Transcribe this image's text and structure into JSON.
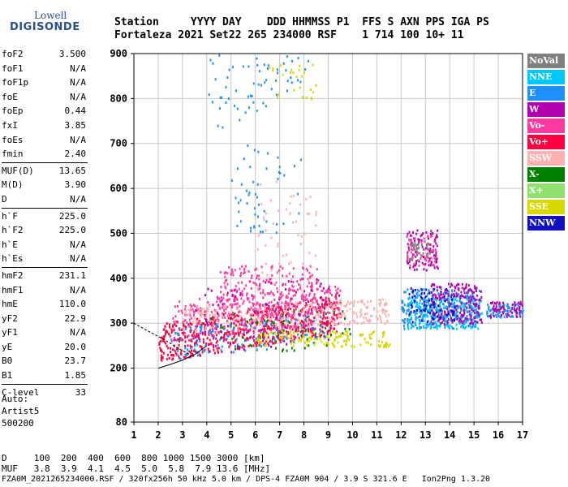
{
  "logo": {
    "line1": "Lowell",
    "line2": "DIGISONDE"
  },
  "header": {
    "line1": "Station     YYYY DAY    DDD HHMMSS P1  FFS S AXN PPS IGA PS",
    "line2": "Fortaleza 2021 Set22 265 234000 RSF    1 714 100 10+ 11"
  },
  "params": [
    [
      [
        "foF2",
        "3.500"
      ],
      [
        "foF1",
        "N/A"
      ],
      [
        "foF1p",
        "N/A"
      ],
      [
        "foE",
        "N/A"
      ],
      [
        "foEp",
        "0.44"
      ],
      [
        "fxI",
        "3.85"
      ],
      [
        "foEs",
        "N/A"
      ],
      [
        "fmin",
        "2.40"
      ]
    ],
    [
      [
        "MUF(D)",
        "13.65"
      ],
      [
        "M(D)",
        "3.90"
      ],
      [
        "D",
        "N/A"
      ]
    ],
    [
      [
        "h`F",
        "225.0"
      ],
      [
        "h`F2",
        "225.0"
      ],
      [
        "h`E",
        "N/A"
      ],
      [
        "h`Es",
        "N/A"
      ]
    ],
    [
      [
        "hmF2",
        "231.1"
      ],
      [
        "hmF1",
        "N/A"
      ],
      [
        "hmE",
        "110.0"
      ],
      [
        "yF2",
        "22.9"
      ],
      [
        "yF1",
        "N/A"
      ],
      [
        "yE",
        "20.0"
      ],
      [
        "B0",
        "23.7"
      ],
      [
        "B1",
        "1.85"
      ]
    ],
    [
      [
        "C-level",
        "33"
      ]
    ]
  ],
  "auto": {
    "line1": "Auto:",
    "line2": "Artist5",
    "line3": "500200"
  },
  "legend": [
    {
      "label": "NoVal",
      "color": "#808080"
    },
    {
      "label": "NNE",
      "color": "#00c8ff"
    },
    {
      "label": "E",
      "color": "#1e90ff"
    },
    {
      "label": "W",
      "color": "#b000b0"
    },
    {
      "label": "Vo-",
      "color": "#ff3aa0"
    },
    {
      "label": "Vo+",
      "color": "#ff0040"
    },
    {
      "label": "SSW",
      "color": "#ffb0b0"
    },
    {
      "label": "X-",
      "color": "#008000"
    },
    {
      "label": "X+",
      "color": "#90e070"
    },
    {
      "label": "SSE",
      "color": "#d8d800"
    },
    {
      "label": "NNW",
      "color": "#1010c0"
    }
  ],
  "footer": {
    "line1": "D     100  200  400  600  800 1000 1500 3000 [km]",
    "line2": "MUF   3.8  3.9  4.1  4.5  5.0  5.8  7.9 13.6 [MHz]",
    "line3": "FZA0M_2021265234000.RSF / 320fx256h 50 kHz 5.0 km / DPS-4 FZA0M 904 / 3.9 S 321.6 E   Ion2Png 1.3.20"
  },
  "chart_data": {
    "type": "scatter",
    "xlim": [
      1,
      17
    ],
    "ylim": [
      80,
      900
    ],
    "xticks": [
      1,
      2,
      3,
      4,
      5,
      6,
      7,
      8,
      9,
      10,
      11,
      12,
      13,
      14,
      15,
      16,
      17
    ],
    "yticks": [
      80,
      200,
      300,
      400,
      500,
      600,
      700,
      800,
      900
    ],
    "grid": true,
    "legend_placement": "right",
    "clusters": [
      {
        "name": "Vo+",
        "color": "#ff0040",
        "fmin": 2.0,
        "fmax": 9.5,
        "hmin": 215,
        "hmax": 300,
        "count": 650,
        "slope": 9
      },
      {
        "name": "Vo-",
        "color": "#ff3aa0",
        "fmin": 2.5,
        "fmax": 9.5,
        "hmin": 260,
        "hmax": 350,
        "count": 320,
        "slope": 6
      },
      {
        "name": "SSW",
        "color": "#ffb0b0",
        "fmin": 3.0,
        "fmax": 11.5,
        "hmin": 285,
        "hmax": 340,
        "count": 320,
        "slope": 2
      },
      {
        "name": "SSE",
        "color": "#d8d800",
        "fmin": 6.0,
        "fmax": 11.5,
        "hmin": 250,
        "hmax": 285,
        "count": 150,
        "slope": 0
      },
      {
        "name": "X-",
        "color": "#008000",
        "fmin": 4.0,
        "fmax": 10.0,
        "hmin": 230,
        "hmax": 320,
        "count": 70,
        "slope": 3
      },
      {
        "name": "E",
        "color": "#1e90ff",
        "fmin": 2.5,
        "fmax": 9.0,
        "hmin": 220,
        "hmax": 290,
        "count": 110,
        "slope": 6
      },
      {
        "name": "W",
        "color": "#b000b0",
        "fmin": 3.5,
        "fmax": 9.0,
        "hmin": 230,
        "hmax": 380,
        "count": 120,
        "slope": 5
      },
      {
        "name": "Vo-",
        "color": "#ff3aa0",
        "fmin": 4.5,
        "fmax": 8.6,
        "hmin": 320,
        "hmax": 430,
        "count": 230,
        "slope": 0
      },
      {
        "name": "E",
        "color": "#1e90ff",
        "fmin": 12.0,
        "fmax": 15.2,
        "hmin": 290,
        "hmax": 380,
        "count": 300,
        "slope": 0
      },
      {
        "name": "NNE",
        "color": "#00c8ff",
        "fmin": 12.2,
        "fmax": 15.3,
        "hmin": 290,
        "hmax": 360,
        "count": 220,
        "slope": 0
      },
      {
        "name": "W",
        "color": "#b000b0",
        "fmin": 13.2,
        "fmax": 15.3,
        "hmin": 300,
        "hmax": 390,
        "count": 200,
        "slope": 0
      },
      {
        "name": "NNW",
        "color": "#1010c0",
        "fmin": 12.3,
        "fmax": 14.2,
        "hmin": 305,
        "hmax": 380,
        "count": 70,
        "slope": 0
      },
      {
        "name": "E",
        "color": "#1e90ff",
        "fmin": 15.5,
        "fmax": 17.0,
        "hmin": 315,
        "hmax": 345,
        "count": 80,
        "slope": 0
      },
      {
        "name": "W",
        "color": "#b000b0",
        "fmin": 15.5,
        "fmax": 17.0,
        "hmin": 315,
        "hmax": 350,
        "count": 60,
        "slope": 0
      },
      {
        "name": "W",
        "color": "#b000b0",
        "fmin": 12.2,
        "fmax": 13.5,
        "hmin": 420,
        "hmax": 510,
        "count": 90,
        "slope": 0
      },
      {
        "name": "Vo-",
        "color": "#ff3aa0",
        "fmin": 12.2,
        "fmax": 13.4,
        "hmin": 430,
        "hmax": 500,
        "count": 60,
        "slope": 0
      },
      {
        "name": "NoVal",
        "color": "#808080",
        "fmin": 12.3,
        "fmax": 13.2,
        "hmin": 440,
        "hmax": 480,
        "count": 30,
        "slope": 0
      },
      {
        "name": "E",
        "color": "#1e90ff",
        "fmin": 4.0,
        "fmax": 8.2,
        "hmin": 700,
        "hmax": 890,
        "count": 90,
        "slope": 35
      },
      {
        "name": "SSE",
        "color": "#d8d800",
        "fmin": 6.5,
        "fmax": 8.5,
        "hmin": 800,
        "hmax": 880,
        "count": 25,
        "slope": 0
      },
      {
        "name": "SSW",
        "color": "#ffb0b0",
        "fmin": 6.0,
        "fmax": 8.5,
        "hmin": 350,
        "hmax": 620,
        "count": 60,
        "slope": 0
      },
      {
        "name": "E",
        "color": "#1e90ff",
        "fmin": 5.0,
        "fmax": 8.0,
        "hmin": 500,
        "hmax": 700,
        "count": 50,
        "slope": 0
      }
    ],
    "leading_edge": [
      [
        2.0,
        200
      ],
      [
        2.6,
        210
      ],
      [
        3.0,
        218
      ],
      [
        3.5,
        230
      ],
      [
        4.0,
        250
      ]
    ],
    "upper_edge": [
      [
        1.0,
        300
      ],
      [
        1.5,
        285
      ],
      [
        2.2,
        265
      ],
      [
        2.8,
        245
      ],
      [
        3.3,
        230
      ]
    ]
  }
}
